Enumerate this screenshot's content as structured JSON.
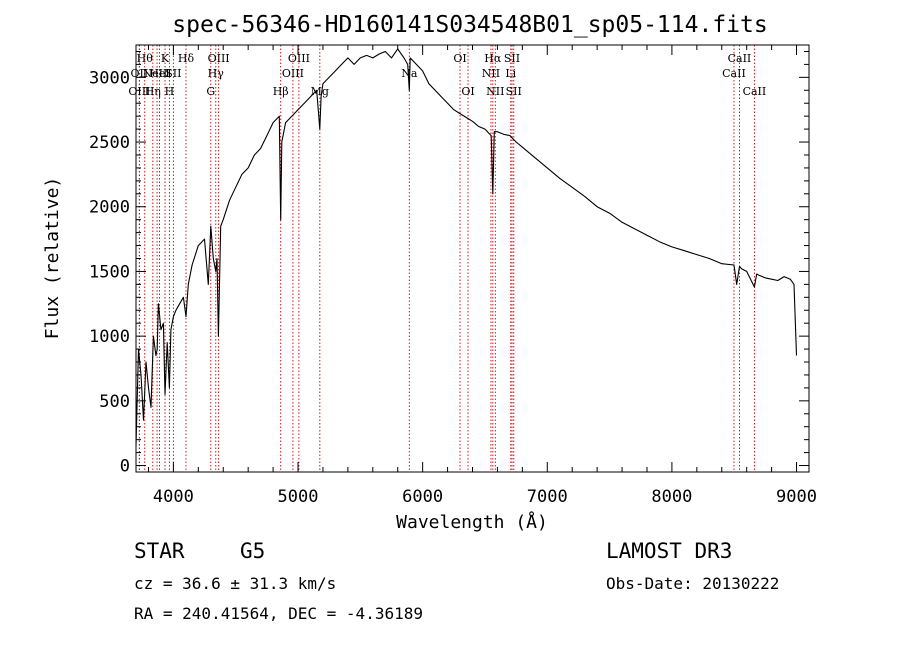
{
  "chart_data": {
    "type": "line",
    "title": "spec-56346-HD160141S034548B01_sp05-114.fits",
    "xlabel": "Wavelength (Å)",
    "ylabel": "Flux (relative)",
    "xlim": [
      3700,
      9100
    ],
    "ylim": [
      -50,
      3250
    ],
    "x_ticks": [
      4000,
      5000,
      6000,
      7000,
      8000,
      9000
    ],
    "x_tick_labels": [
      "4000",
      "5000",
      "6000",
      "7000",
      "8000",
      "9000"
    ],
    "y_ticks": [
      0,
      500,
      1000,
      1500,
      2000,
      2500,
      3000
    ],
    "y_tick_labels": [
      "0",
      "500",
      "1000",
      "1500",
      "2000",
      "2500",
      "3000"
    ],
    "line_color": "#000000",
    "marker_color": "#cc0000",
    "series": [
      {
        "name": "spectrum",
        "x": [
          3700,
          3720,
          3740,
          3760,
          3780,
          3800,
          3820,
          3840,
          3860,
          3870,
          3880,
          3890,
          3900,
          3920,
          3933,
          3950,
          3968,
          3980,
          4000,
          4020,
          4050,
          4080,
          4101,
          4120,
          4150,
          4200,
          4250,
          4280,
          4300,
          4320,
          4340,
          4350,
          4361,
          4380,
          4400,
          4450,
          4500,
          4550,
          4600,
          4650,
          4700,
          4750,
          4800,
          4850,
          4861,
          4870,
          4900,
          4950,
          5000,
          5050,
          5100,
          5150,
          5175,
          5185,
          5200,
          5250,
          5300,
          5350,
          5400,
          5450,
          5500,
          5550,
          5600,
          5650,
          5700,
          5750,
          5800,
          5850,
          5880,
          5893,
          5900,
          5950,
          6000,
          6050,
          6100,
          6150,
          6200,
          6250,
          6300,
          6350,
          6400,
          6450,
          6500,
          6550,
          6563,
          6575,
          6600,
          6650,
          6700,
          6750,
          6800,
          6900,
          7000,
          7100,
          7200,
          7300,
          7400,
          7500,
          7600,
          7700,
          7800,
          7900,
          8000,
          8100,
          8200,
          8300,
          8400,
          8498,
          8520,
          8542,
          8560,
          8600,
          8662,
          8680,
          8700,
          8750,
          8800,
          8850,
          8900,
          8950,
          8980,
          9000
        ],
        "y": [
          150,
          900,
          700,
          350,
          800,
          600,
          450,
          1000,
          850,
          900,
          1250,
          1150,
          1050,
          1100,
          550,
          950,
          600,
          1050,
          1150,
          1200,
          1250,
          1300,
          1150,
          1400,
          1550,
          1700,
          1750,
          1400,
          1850,
          1600,
          1500,
          1600,
          1000,
          1850,
          1900,
          2050,
          2150,
          2250,
          2300,
          2400,
          2450,
          2550,
          2650,
          2700,
          1900,
          2500,
          2650,
          2700,
          2750,
          2800,
          2850,
          2900,
          2600,
          2850,
          2950,
          3000,
          3050,
          3100,
          3150,
          3100,
          3150,
          3170,
          3150,
          3180,
          3200,
          3150,
          3220,
          3150,
          3100,
          2900,
          3150,
          3100,
          3050,
          2950,
          2900,
          2850,
          2800,
          2750,
          2720,
          2690,
          2660,
          2620,
          2600,
          2550,
          2100,
          2580,
          2580,
          2560,
          2550,
          2500,
          2460,
          2380,
          2300,
          2220,
          2150,
          2080,
          2000,
          1950,
          1880,
          1830,
          1780,
          1730,
          1690,
          1660,
          1630,
          1600,
          1560,
          1550,
          1400,
          1540,
          1520,
          1500,
          1380,
          1480,
          1470,
          1450,
          1440,
          1430,
          1460,
          1440,
          1400,
          850
        ]
      }
    ],
    "line_markers": [
      {
        "wavelength": 3770,
        "label": "Hθ",
        "row": 1
      },
      {
        "wavelength": 3727,
        "label": "OII",
        "row": 2
      },
      {
        "wavelength": 3727,
        "label": "OIII",
        "row": 3
      },
      {
        "wavelength": 3835,
        "label": "Hη",
        "row": 3
      },
      {
        "wavelength": 3869,
        "label": "NeIII",
        "row": 2
      },
      {
        "wavelength": 3889,
        "label": "HeI",
        "row": 2
      },
      {
        "wavelength": 3933,
        "label": "K",
        "row": 1
      },
      {
        "wavelength": 3968,
        "label": "H",
        "row": 3
      },
      {
        "wavelength": 4000,
        "label": "SII",
        "row": 2
      },
      {
        "wavelength": 4101,
        "label": "Hδ",
        "row": 1
      },
      {
        "wavelength": 4300,
        "label": "G",
        "row": 3
      },
      {
        "wavelength": 4340,
        "label": "Hγ",
        "row": 2
      },
      {
        "wavelength": 4363,
        "label": "OIII",
        "row": 1
      },
      {
        "wavelength": 4861,
        "label": "Hβ",
        "row": 3
      },
      {
        "wavelength": 4959,
        "label": "OIII",
        "row": 2
      },
      {
        "wavelength": 5007,
        "label": "OIII",
        "row": 1
      },
      {
        "wavelength": 5175,
        "label": "Mg",
        "row": 3
      },
      {
        "wavelength": 5893,
        "label": "Na",
        "row": 2
      },
      {
        "wavelength": 6300,
        "label": "OI",
        "row": 1
      },
      {
        "wavelength": 6364,
        "label": "OI",
        "row": 3
      },
      {
        "wavelength": 6548,
        "label": "NII",
        "row": 2
      },
      {
        "wavelength": 6563,
        "label": "Hα",
        "row": 1
      },
      {
        "wavelength": 6583,
        "label": "NII",
        "row": 3
      },
      {
        "wavelength": 6707,
        "label": "Li",
        "row": 2
      },
      {
        "wavelength": 6717,
        "label": "SII",
        "row": 1
      },
      {
        "wavelength": 6731,
        "label": "SII",
        "row": 3
      },
      {
        "wavelength": 8498,
        "label": "CaII",
        "row": 2
      },
      {
        "wavelength": 8542,
        "label": "CaII",
        "row": 1
      },
      {
        "wavelength": 8662,
        "label": "CaII",
        "row": 3
      }
    ]
  },
  "info": {
    "object_class": "STAR",
    "subclass": "G5",
    "survey": "LAMOST DR3",
    "redshift_line": "cz = 36.6 ± 31.3 km/s",
    "obs_date": "Obs-Date: 20130222",
    "coords": "RA = 240.41564, DEC =  -4.36189"
  }
}
